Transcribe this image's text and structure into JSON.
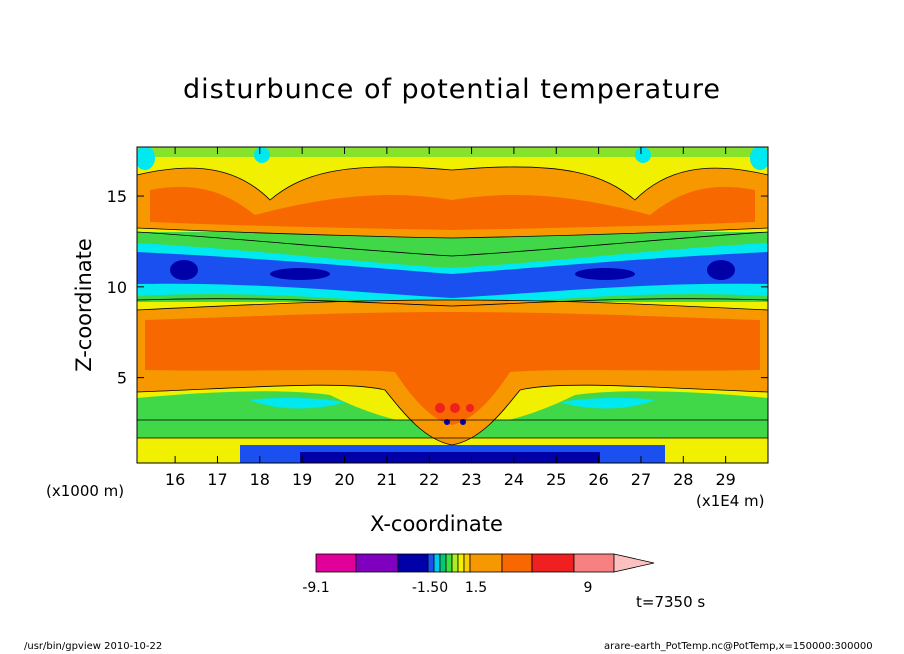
{
  "chart_data": {
    "type": "heatmap",
    "title": "disturbunce of potential temperature",
    "xlabel": "X-coordinate",
    "ylabel": "Z-coordinate",
    "x_unit_note": "(x1E4 m)",
    "y_unit_note": "(x1000 m)",
    "xlim": [
      15.1,
      30.0
    ],
    "ylim": [
      0.3,
      17.7
    ],
    "x_ticks": [
      "16",
      "17",
      "18",
      "19",
      "20",
      "21",
      "22",
      "23",
      "24",
      "25",
      "26",
      "27",
      "28",
      "29"
    ],
    "y_ticks": [
      "5",
      "10",
      "15"
    ],
    "time_label": "t=7350 s",
    "colorbar": {
      "labels": [
        "-9.1",
        "-1.50",
        "1.5",
        "9"
      ],
      "colors": [
        "#e0009a",
        "#8000c0",
        "#0000a8",
        "#1a50f0",
        "#00c8f0",
        "#00c878",
        "#40e040",
        "#a8f020",
        "#f0f000",
        "#f8d000",
        "#f89800",
        "#f86800",
        "#f02020",
        "#f88080",
        "#fcc0c0"
      ]
    },
    "regions": {
      "background": "#f0f000",
      "orange_upper_layer": "#f89800",
      "orange_core": "#f86800",
      "cold_band_center_z": 10.6,
      "cold_band_color": "#00e8f0",
      "cold_core_color": "#0000a8",
      "green_band_color": "#40d848"
    }
  },
  "footer": {
    "left": "/usr/bin/gpview   2010-10-22",
    "right": "arare-earth_PotTemp.nc@PotTemp,x=150000:300000"
  }
}
